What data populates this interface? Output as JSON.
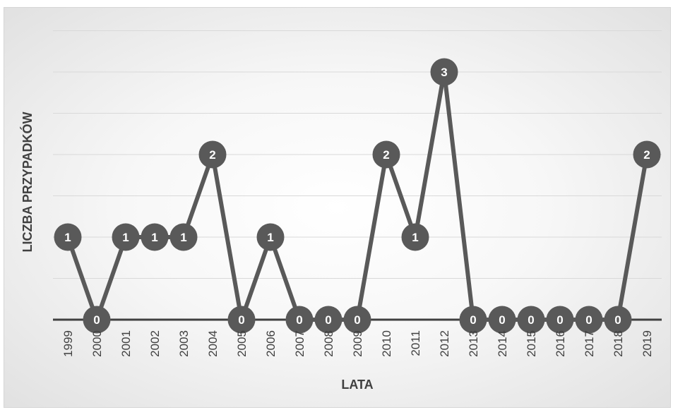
{
  "chart_data": {
    "type": "line",
    "title": "",
    "xlabel": "LATA",
    "ylabel": "LICZBA PRZYPADKÓW",
    "categories": [
      "1999",
      "2000",
      "2001",
      "2002",
      "2003",
      "2004",
      "2005",
      "2006",
      "2007",
      "2008",
      "2009",
      "2010",
      "2011",
      "2012",
      "2013",
      "2014",
      "2015",
      "2016",
      "2017",
      "2018",
      "2019"
    ],
    "series": [
      {
        "values": [
          1,
          0,
          1,
          1,
          1,
          2,
          0,
          1,
          0,
          0,
          0,
          2,
          1,
          3,
          0,
          0,
          0,
          0,
          0,
          0,
          2
        ]
      }
    ],
    "ylim": [
      0,
      3.5
    ],
    "grid": true,
    "legend": "none",
    "data_labels": true,
    "colors": {
      "line": "#595959",
      "marker": "#595959",
      "grid": "#d9d9d9",
      "axis": "#404040"
    }
  }
}
